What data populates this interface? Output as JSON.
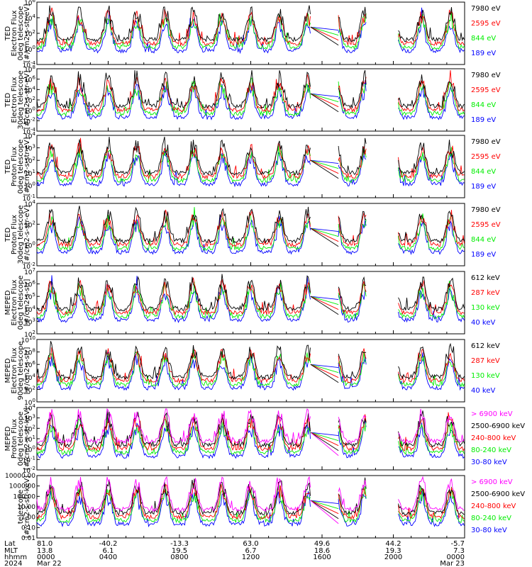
{
  "chart_data": [
    {
      "type": "line",
      "ylabel": [
        "TED",
        "Electron Flux",
        "0deg telescope",
        "[#/cm2-s-str-eV]"
      ],
      "yscale": "log",
      "yticks": [
        "10^-4",
        "10^0",
        "10^2",
        "10^4",
        "10^6"
      ],
      "legend": [
        {
          "label": "7980 eV",
          "color": "#000000"
        },
        {
          "label": "2595 eV",
          "color": "#ff0000"
        },
        {
          "label": "844 eV",
          "color": "#00ee00"
        },
        {
          "label": "189 eV",
          "color": "#0000ff"
        }
      ]
    },
    {
      "type": "line",
      "ylabel": [
        "TED",
        "Electron Flux",
        "30deg telescope",
        "[#/cm2-s-str-eV]"
      ],
      "yscale": "log",
      "yticks": [
        "10^-4",
        "10^-2",
        "10^0",
        "10^2",
        "10^4",
        "10^6",
        "10^8"
      ],
      "legend": [
        {
          "label": "7980 eV",
          "color": "#000000"
        },
        {
          "label": "2595 eV",
          "color": "#ff0000"
        },
        {
          "label": "844 eV",
          "color": "#00ee00"
        },
        {
          "label": "189 eV",
          "color": "#0000ff"
        }
      ]
    },
    {
      "type": "line",
      "ylabel": [
        "TED",
        "Proton Flux",
        "0deg telescope",
        "[#/cm2-s-str-eV]"
      ],
      "yscale": "log",
      "yticks": [
        "10^-1",
        "10^0",
        "10^1",
        "10^2",
        "10^3",
        "10^4"
      ],
      "legend": [
        {
          "label": "7980 eV",
          "color": "#000000"
        },
        {
          "label": "2595 eV",
          "color": "#ff0000"
        },
        {
          "label": "844 eV",
          "color": "#00ee00"
        },
        {
          "label": "189 eV",
          "color": "#0000ff"
        }
      ]
    },
    {
      "type": "line",
      "ylabel": [
        "TED",
        "Proton Flux",
        "30deg telescope",
        "[#/cm2-s-str-eV]"
      ],
      "yscale": "log",
      "yticks": [
        "10^-2",
        "10^0",
        "10^2",
        "10^4"
      ],
      "legend": [
        {
          "label": "7980 eV",
          "color": "#000000"
        },
        {
          "label": "2595 eV",
          "color": "#ff0000"
        },
        {
          "label": "844 eV",
          "color": "#00ee00"
        },
        {
          "label": "189 eV",
          "color": "#0000ff"
        }
      ]
    },
    {
      "type": "line",
      "ylabel": [
        "MEPED",
        "Electron Flux",
        "0deg telescope",
        "[#/cm2-s-str]"
      ],
      "yscale": "log",
      "yticks": [
        "10^2",
        "10^3",
        "10^4",
        "10^5",
        "10^6",
        "10^7"
      ],
      "legend": [
        {
          "label": "612 keV",
          "color": "#000000"
        },
        {
          "label": "287 keV",
          "color": "#ff0000"
        },
        {
          "label": "130 keV",
          "color": "#00ee00"
        },
        {
          "label": "40 keV",
          "color": "#0000ff"
        }
      ]
    },
    {
      "type": "line",
      "ylabel": [
        "MEPED",
        "Electron Flux",
        "90deg telescope",
        "[#/cm2-s-str]"
      ],
      "yscale": "log",
      "yticks": [
        "10^0",
        "10^2",
        "10^4",
        "10^6",
        "10^8",
        "10^10"
      ],
      "legend": [
        {
          "label": "612 keV",
          "color": "#000000"
        },
        {
          "label": "287 keV",
          "color": "#ff0000"
        },
        {
          "label": "130 keV",
          "color": "#00ee00"
        },
        {
          "label": "40 keV",
          "color": "#0000ff"
        }
      ]
    },
    {
      "type": "line",
      "ylabel": [
        "MEPED",
        "Proton Flux",
        "0deg telescope",
        "[#/cm2-s-str-keV]"
      ],
      "yscale": "log",
      "yticks": [
        "10^-2",
        "10^-1",
        "10^0",
        "10^1",
        "10^2",
        "10^3",
        "10^4"
      ],
      "legend": [
        {
          "label": "> 6900 keV",
          "color": "#ff00ff"
        },
        {
          "label": "2500-6900 keV",
          "color": "#000000"
        },
        {
          "label": "240-800 keV",
          "color": "#ff0000"
        },
        {
          "label": "80-240 keV",
          "color": "#00ee00"
        },
        {
          "label": "30-80 keV",
          "color": "#0000ff"
        }
      ]
    },
    {
      "type": "line",
      "ylabel": [
        "",
        "",
        "telescope",
        "[#/cm2-s-str-keV]"
      ],
      "yscale": "log",
      "yticks": [
        "0.01",
        "0.10",
        "1.00",
        "10.00",
        "100.00",
        "1000.00",
        "10000.00"
      ],
      "legend": [
        {
          "label": "> 6900 keV",
          "color": "#ff00ff"
        },
        {
          "label": "2500-6900 keV",
          "color": "#000000"
        },
        {
          "label": "240-800 keV",
          "color": "#ff0000"
        },
        {
          "label": "80-240 keV",
          "color": "#00ee00"
        },
        {
          "label": "30-80 keV",
          "color": "#0000ff"
        }
      ]
    }
  ],
  "footer": {
    "row_labels": [
      "Lat",
      "MLT",
      "hhmm",
      "2024"
    ],
    "columns": [
      {
        "lat": "81.0",
        "mlt": "13.8",
        "hhmm": "0000",
        "date": "Mar 22"
      },
      {
        "lat": "-40.2",
        "mlt": "6.1",
        "hhmm": "0400",
        "date": ""
      },
      {
        "lat": "-13.3",
        "mlt": "19.5",
        "hhmm": "0800",
        "date": ""
      },
      {
        "lat": "63.0",
        "mlt": "6.7",
        "hhmm": "1200",
        "date": ""
      },
      {
        "lat": "49.6",
        "mlt": "18.6",
        "hhmm": "1600",
        "date": ""
      },
      {
        "lat": "44.2",
        "mlt": "19.3",
        "hhmm": "2000",
        "date": ""
      },
      {
        "lat": "-5.7",
        "mlt": "7.3",
        "hhmm": "0000",
        "date": "Mar 23"
      }
    ]
  }
}
